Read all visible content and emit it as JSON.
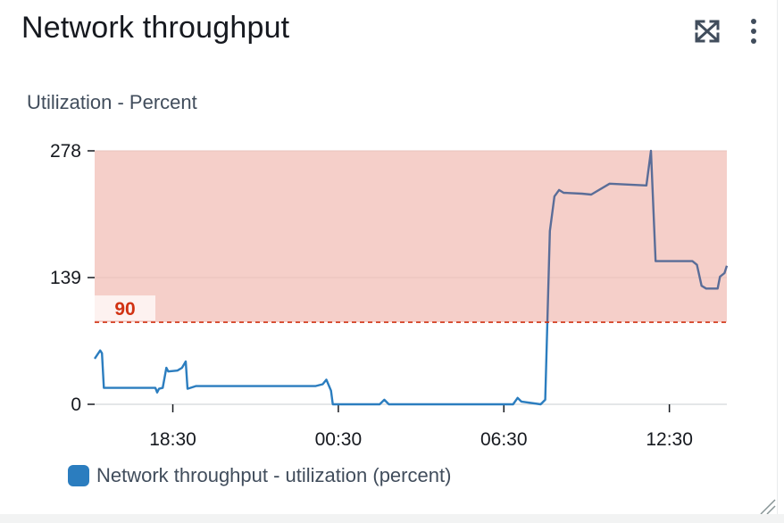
{
  "widget": {
    "title": "Network throughput",
    "subtitle": "Utilization - Percent",
    "icons": [
      "expand-icon",
      "more-vertical-icon",
      "resize-handle-icon"
    ]
  },
  "colors": {
    "series": "#2b7dbf",
    "series_alarm": "#5a6d98",
    "alarm_fill": "#f5cfc9",
    "threshold": "#d13212",
    "axis": "#16191f",
    "grid": "#e9c3bd"
  },
  "chart_data": {
    "type": "line",
    "title": "Network throughput",
    "ylabel": "Utilization - Percent",
    "ylim": [
      0,
      278
    ],
    "yticks": [
      "0",
      "139",
      "278"
    ],
    "xlim": [
      "15:40",
      "14:35"
    ],
    "xticks": [
      "18:30",
      "00:30",
      "06:30",
      "12:30"
    ],
    "grid": "horizontal",
    "threshold": {
      "value": 90,
      "label": "90",
      "alarm_above": true
    },
    "series": [
      {
        "name": "Network throughput - utilization (percent)",
        "points": [
          [
            "15:40",
            50
          ],
          [
            "15:52",
            59
          ],
          [
            "15:56",
            56
          ],
          [
            "16:00",
            18
          ],
          [
            "16:30",
            18
          ],
          [
            "17:00",
            18
          ],
          [
            "17:30",
            18
          ],
          [
            "17:52",
            18
          ],
          [
            "17:56",
            13
          ],
          [
            "18:00",
            17
          ],
          [
            "18:08",
            18
          ],
          [
            "18:16",
            40
          ],
          [
            "18:20",
            36
          ],
          [
            "18:40",
            37
          ],
          [
            "18:50",
            40
          ],
          [
            "18:58",
            47
          ],
          [
            "19:02",
            17
          ],
          [
            "19:20",
            20
          ],
          [
            "20:00",
            20
          ],
          [
            "21:00",
            20
          ],
          [
            "22:00",
            20
          ],
          [
            "23:00",
            20
          ],
          [
            "23:40",
            20
          ],
          [
            "23:56",
            22
          ],
          [
            "00:04",
            27
          ],
          [
            "00:14",
            15
          ],
          [
            "00:18",
            0
          ],
          [
            "02:00",
            0
          ],
          [
            "02:10",
            5
          ],
          [
            "02:20",
            0
          ],
          [
            "04:00",
            0
          ],
          [
            "06:00",
            0
          ],
          [
            "06:30",
            0
          ],
          [
            "06:50",
            0
          ],
          [
            "07:00",
            7
          ],
          [
            "07:08",
            3
          ],
          [
            "07:50",
            0
          ],
          [
            "08:00",
            5
          ],
          [
            "08:10",
            190
          ],
          [
            "08:20",
            228
          ],
          [
            "08:30",
            235
          ],
          [
            "08:40",
            232
          ],
          [
            "09:20",
            231
          ],
          [
            "09:40",
            230
          ],
          [
            "10:20",
            242
          ],
          [
            "11:40",
            240
          ],
          [
            "11:50",
            278
          ],
          [
            "12:00",
            157
          ],
          [
            "13:20",
            157
          ],
          [
            "13:30",
            153
          ],
          [
            "13:40",
            130
          ],
          [
            "13:50",
            127
          ],
          [
            "14:15",
            127
          ],
          [
            "14:20",
            140
          ],
          [
            "14:30",
            144
          ],
          [
            "14:35",
            152
          ]
        ]
      }
    ],
    "legend": {
      "position": "bottom-left",
      "entries": [
        "Network throughput - utilization (percent)"
      ]
    }
  }
}
